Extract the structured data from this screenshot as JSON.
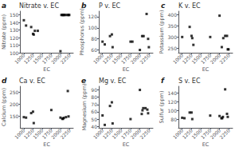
{
  "chart_data": [
    {
      "type": "scatter",
      "title": "Nitrate v. EC",
      "annotations": [
        "a"
      ],
      "xlabel": "EC",
      "ylabel": "Nitrate (ppm)",
      "xlim": [
        900,
        2350
      ],
      "ylim": [
        100,
        155
      ],
      "xticks": [
        1000,
        1250,
        1500,
        1750,
        2000,
        2250
      ],
      "yticks": [
        100,
        110,
        120,
        130,
        140,
        150
      ],
      "x": [
        1000,
        1060,
        1200,
        1250,
        1270,
        1300,
        1380,
        2000,
        2025,
        2050,
        2070,
        2090,
        2110,
        2150,
        2200,
        2220,
        2240
      ],
      "values": [
        143,
        136,
        134,
        125,
        124,
        129,
        129,
        102,
        150,
        150,
        150,
        150,
        150,
        150,
        150,
        150,
        150
      ],
      "grid": false,
      "color": "black",
      "marker": "square"
    },
    {
      "type": "scatter",
      "title": "P v. EC",
      "annotations": [
        "b"
      ],
      "xlabel": "EC",
      "ylabel": "Phosphorus (ppm)",
      "xlim": [
        900,
        2350
      ],
      "ylim": [
        55,
        130
      ],
      "xticks": [
        1000,
        1250,
        1500,
        1750,
        2000,
        2250
      ],
      "yticks": [
        60,
        80,
        100,
        120
      ],
      "x": [
        1000,
        1060,
        1200,
        1250,
        1270,
        1750,
        1800,
        2000,
        2060,
        2100,
        2180,
        2220,
        2240
      ],
      "values": [
        75,
        70,
        85,
        88,
        65,
        75,
        75,
        60,
        85,
        85,
        125,
        80,
        65
      ],
      "grid": false,
      "color": "black",
      "marker": "square"
    },
    {
      "type": "scatter",
      "title": "K v. EC",
      "annotations": [
        "c"
      ],
      "xlabel": "EC",
      "ylabel": "Potassium (ppm)",
      "xlim": [
        900,
        2350
      ],
      "ylim": [
        230,
        415
      ],
      "xticks": [
        1000,
        1250,
        1500,
        1750,
        2000,
        2250
      ],
      "yticks": [
        250,
        300,
        350,
        400
      ],
      "x": [
        1000,
        1200,
        1250,
        1270,
        1300,
        1750,
        2000,
        2060,
        2100,
        2150,
        2200,
        2220,
        2240
      ],
      "values": [
        300,
        345,
        305,
        295,
        265,
        300,
        395,
        255,
        295,
        305,
        305,
        245,
        245
      ],
      "grid": false,
      "color": "black",
      "marker": "square"
    },
    {
      "type": "scatter",
      "title": "Ca v. EC",
      "annotations": [
        "d"
      ],
      "xlabel": "EC",
      "ylabel": "Calcium (ppm)",
      "xlim": [
        900,
        2350
      ],
      "ylim": [
        100,
        275
      ],
      "xticks": [
        1000,
        1250,
        1500,
        1750,
        2000,
        2250
      ],
      "yticks": [
        150,
        200,
        250
      ],
      "x": [
        1000,
        1060,
        1200,
        1250,
        1270,
        1750,
        2000,
        2050,
        2070,
        2090,
        2150,
        2200,
        2220
      ],
      "values": [
        145,
        143,
        162,
        168,
        120,
        175,
        143,
        138,
        138,
        142,
        145,
        255,
        148
      ],
      "grid": false,
      "color": "black",
      "marker": "square"
    },
    {
      "type": "scatter",
      "title": "Mg v. EC",
      "annotations": [
        "e"
      ],
      "xlabel": "EC",
      "ylabel": "Magnesium (ppm)",
      "xlim": [
        900,
        2350
      ],
      "ylim": [
        38,
        95
      ],
      "xticks": [
        1000,
        1250,
        1500,
        1750,
        2000,
        2250
      ],
      "yticks": [
        40,
        50,
        60,
        70,
        80,
        90
      ],
      "x": [
        1000,
        1060,
        1200,
        1250,
        1270,
        1750,
        2000,
        2050,
        2070,
        2090,
        2150,
        2200,
        2220
      ],
      "values": [
        55,
        42,
        68,
        73,
        44,
        50,
        90,
        57,
        62,
        65,
        65,
        63,
        58
      ],
      "grid": false,
      "color": "black",
      "marker": "square"
    },
    {
      "type": "scatter",
      "title": "S v. EC",
      "annotations": [
        "f"
      ],
      "xlabel": "EC",
      "ylabel": "Sulfur (ppm)",
      "xlim": [
        900,
        2350
      ],
      "ylim": [
        60,
        155
      ],
      "xticks": [
        1000,
        1250,
        1500,
        1750,
        2000,
        2250
      ],
      "yticks": [
        80,
        100,
        120,
        140
      ],
      "x": [
        1000,
        1060,
        1200,
        1250,
        1270,
        1750,
        2000,
        2050,
        2070,
        2090,
        2150,
        2200,
        2220
      ],
      "values": [
        83,
        82,
        95,
        95,
        80,
        88,
        87,
        82,
        82,
        85,
        148,
        92,
        85
      ],
      "grid": false,
      "color": "black",
      "marker": "square"
    }
  ]
}
